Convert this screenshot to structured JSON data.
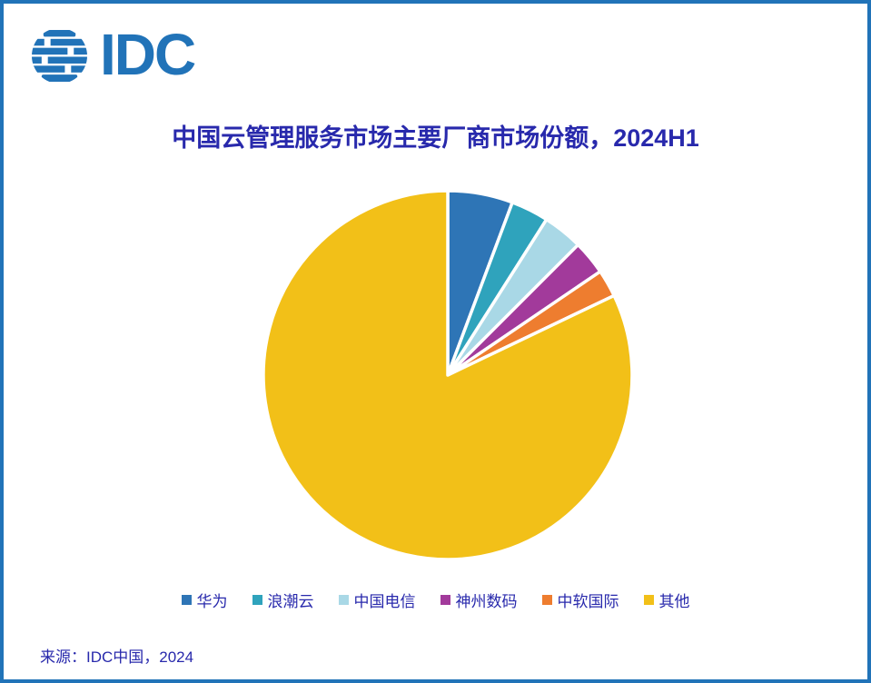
{
  "page": {
    "border_color": "#2173B8",
    "background": "#FFFFFF"
  },
  "logo": {
    "text": "IDC",
    "color": "#2173B8"
  },
  "chart_data": {
    "type": "pie",
    "title": "中国云管理服务市场主要厂商市场份额，2024H1",
    "title_color": "#2829AC",
    "legend_position": "bottom",
    "start_angle_deg": 0,
    "direction": "clockwise",
    "units": "percent (estimated from slice angles; no data labels shown)",
    "slices": [
      {
        "label": "华为",
        "value": 5.7,
        "color": "#2E75B6"
      },
      {
        "label": "浪潮云",
        "value": 3.3,
        "color": "#2FA3BC"
      },
      {
        "label": "中国电信",
        "value": 3.5,
        "color": "#A9D8E6"
      },
      {
        "label": "神州数码",
        "value": 3.0,
        "color": "#A23A9B"
      },
      {
        "label": "中软国际",
        "value": 2.4,
        "color": "#EE7D2F"
      },
      {
        "label": "其他",
        "value": 82.1,
        "color": "#F2C018"
      }
    ]
  },
  "footer": {
    "source_text": "来源：IDC中国，2024"
  }
}
